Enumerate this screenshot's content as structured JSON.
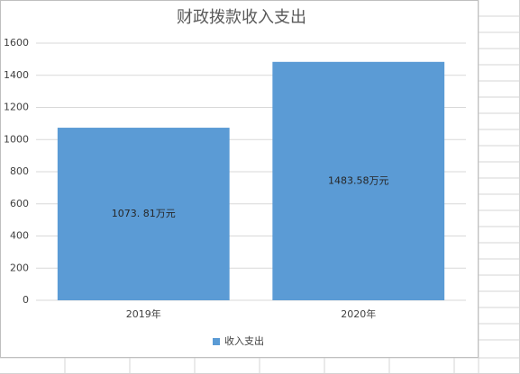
{
  "chart_data": {
    "type": "bar",
    "title": "财政拨款收入支出",
    "categories": [
      "2019年",
      "2020年"
    ],
    "series": [
      {
        "name": "收入支出",
        "color": "#5b9bd5",
        "values": [
          1073.81,
          1483.58
        ],
        "value_labels": [
          "1073. 81万元",
          "1483.58万元"
        ]
      }
    ],
    "ylim": [
      0,
      1600
    ],
    "yticks": [
      0,
      200,
      400,
      600,
      800,
      1000,
      1200,
      1400,
      1600
    ],
    "grid": true,
    "legend": "bottom"
  }
}
